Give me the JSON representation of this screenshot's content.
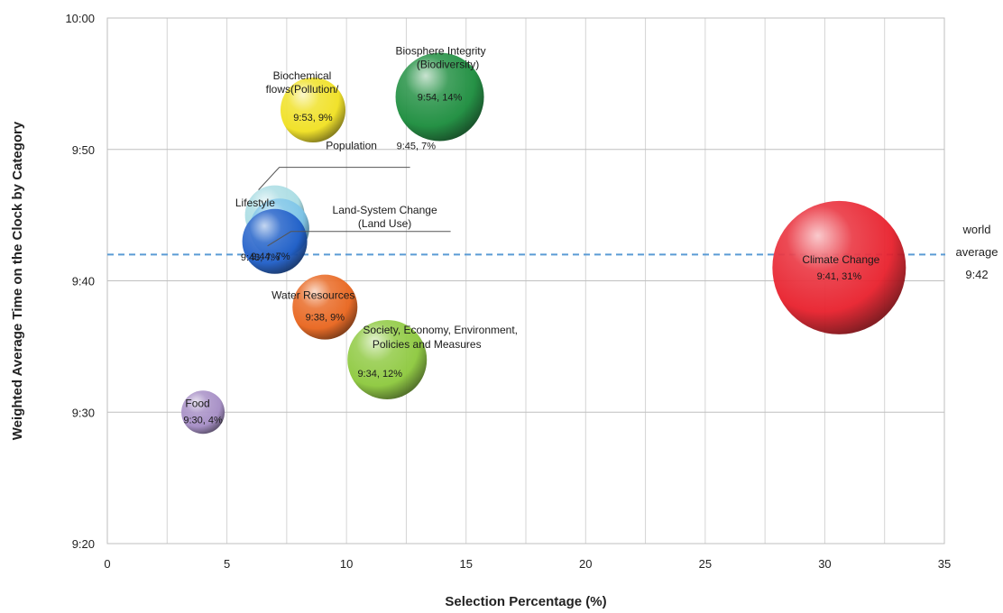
{
  "chart_data": {
    "type": "scatter",
    "xlabel": "Selection Percentage (%)",
    "ylabel": "Weighted Average Time on the Clock by Category",
    "xlim": [
      0,
      35
    ],
    "ylim": [
      560,
      600
    ],
    "x_ticks": [
      0,
      5,
      10,
      15,
      20,
      25,
      30,
      35
    ],
    "x_tick_labels": [
      "0",
      "5",
      "10",
      "15",
      "20",
      "25",
      "30",
      "35"
    ],
    "y_ticks": [
      560,
      570,
      580,
      590,
      600
    ],
    "y_tick_labels": [
      "9:20",
      "9:30",
      "9:40",
      "9:50",
      "10:00"
    ],
    "grid": true,
    "reference_line": {
      "value": 582,
      "label_lines": [
        "world",
        "average",
        "9:42"
      ],
      "color": "#5b9bd5"
    },
    "points": [
      {
        "id": "food",
        "label_lines": [
          "Food"
        ],
        "value_label": "9:30, 4%",
        "x": 4,
        "y": 570,
        "color": "#a48cc4",
        "text_color": "#1a1a1a"
      },
      {
        "id": "population",
        "label_lines": [
          "Population"
        ],
        "value_label": "9:45, 7%",
        "x": 7,
        "y": 585,
        "color": "#a8dce3",
        "text_color": "#1a1a1a"
      },
      {
        "id": "lifestyle",
        "label_lines": [
          "Lifestyle"
        ],
        "value_label": "9:44, 7%",
        "x": 7.2,
        "y": 584,
        "color": "#7cc4e8",
        "text_color": "#1a1a1a"
      },
      {
        "id": "land-system-change",
        "label_lines": [
          "Land-System Change",
          "(Land Use)"
        ],
        "value_label": "9:43, 7%",
        "x": 7,
        "y": 583,
        "color": "#1f5ec8",
        "text_color": "#1a1a1a"
      },
      {
        "id": "biochemical-flows",
        "label_lines": [
          "Biochemical",
          "flows(Pollution/"
        ],
        "value_label": "9:53, 9%",
        "x": 8.6,
        "y": 593,
        "color": "#f0e020",
        "text_color": "#1a1a1a"
      },
      {
        "id": "water-resources",
        "label_lines": [
          "Water Resources"
        ],
        "value_label": "9:38, 9%",
        "x": 9.1,
        "y": 578,
        "color": "#e8641c",
        "text_color": "#1a1a1a"
      },
      {
        "id": "society-economy",
        "label_lines": [
          "Society, Economy, Environment,",
          "Policies and Measures"
        ],
        "value_label": "9:34, 12%",
        "x": 11.7,
        "y": 574,
        "color": "#8cc83c",
        "text_color": "#1a1a1a"
      },
      {
        "id": "biosphere-integrity",
        "label_lines": [
          "Biosphere Integrity",
          "(Biodiversity)"
        ],
        "value_label": "9:54, 14%",
        "x": 13.9,
        "y": 594,
        "color": "#1a8c3c",
        "text_color": "#ffffff"
      },
      {
        "id": "climate-change",
        "label_lines": [
          "Climate Change"
        ],
        "value_label": "9:41, 31%",
        "x": 30.6,
        "y": 581,
        "color": "#e8202c",
        "text_color": "#ffffff"
      }
    ]
  }
}
